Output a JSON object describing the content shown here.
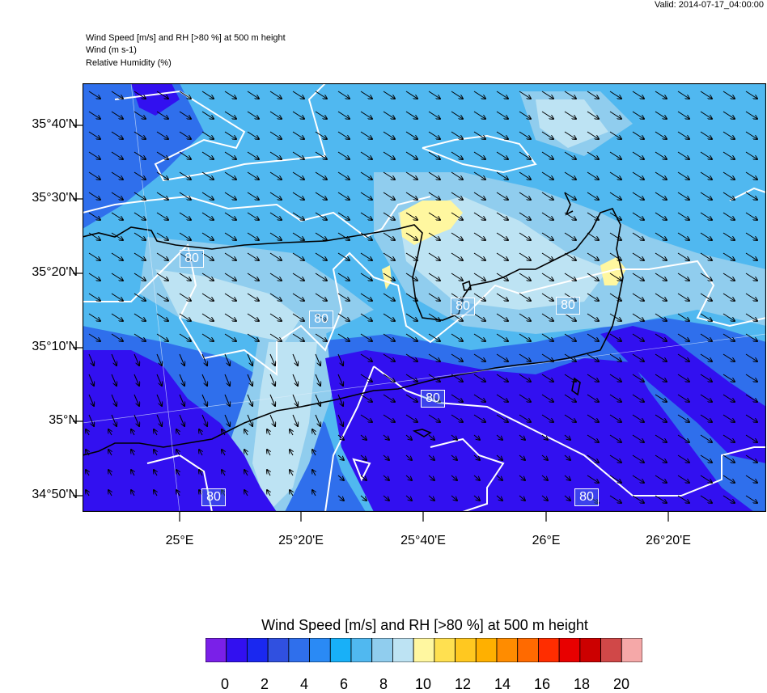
{
  "valid_time": "Valid: 2014-07-17_04:00:00",
  "header": {
    "line1": "Wind Speed [m/s] and RH [>80 %] at 500 m height",
    "line2": "Wind   (m s-1)",
    "line3": "Relative Humidity   (%)"
  },
  "lat_labels": [
    "35°40'N",
    "35°30'N",
    "35°20'N",
    "35°10'N",
    "35°N",
    "34°50'N"
  ],
  "lon_labels": [
    "25°E",
    "25°20'E",
    "25°40'E",
    "26°E",
    "26°20'E"
  ],
  "contour_label": "80",
  "colorbar": {
    "title": "Wind Speed [m/s] and RH [>80 %] at 500 m height",
    "ticks": [
      "0",
      "2",
      "4",
      "6",
      "8",
      "10",
      "12",
      "14",
      "16",
      "18",
      "20"
    ],
    "colors": [
      "#7a20e8",
      "#3210f0",
      "#1a28f0",
      "#3050e0",
      "#2f6fec",
      "#2a8af5",
      "#18b0f8",
      "#50b8f0",
      "#90cdee",
      "#bde3f3",
      "#fff7a0",
      "#ffe050",
      "#ffc820",
      "#ffb000",
      "#ff8c00",
      "#ff6a00",
      "#ff2d00",
      "#e80000",
      "#cc0000",
      "#d04848",
      "#f5a8a8"
    ]
  },
  "map_colors": {
    "background": "#50b8f0",
    "strong": "#3210f0",
    "mid": "#2f6fec",
    "light": "#90cdee",
    "pale": "#bde3f3",
    "humid": "#fff7a0",
    "coast": "#000000",
    "contour": "#ffffff"
  }
}
